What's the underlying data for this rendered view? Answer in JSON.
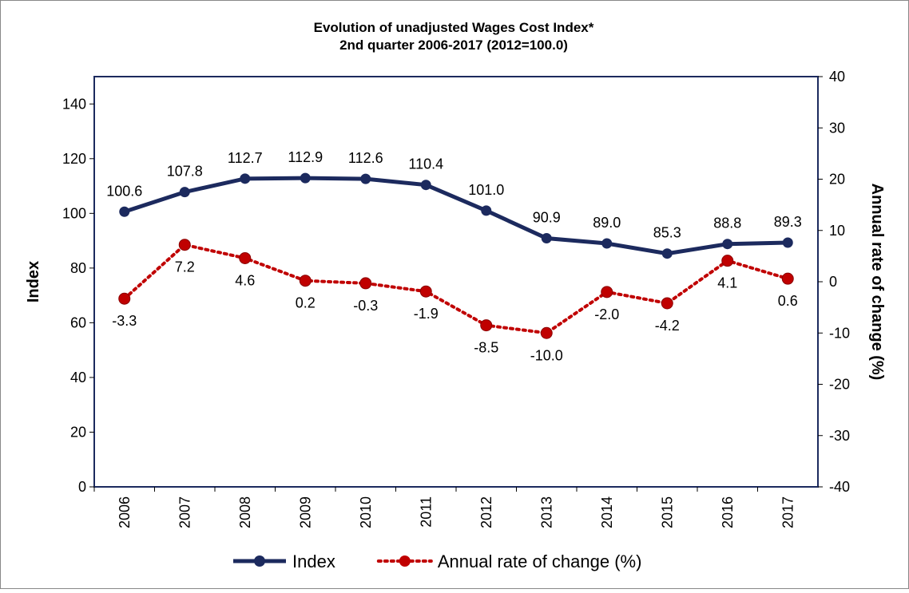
{
  "chart_data": {
    "type": "line",
    "title": "Evolution of unadjusted Wages Cost Index*",
    "subtitle": "2nd quarter 2006-2017 (2012=100.0)",
    "y_label": "Index",
    "y2_label": "Annual rate of change (%)",
    "categories": [
      "2006",
      "2007",
      "2008",
      "2009",
      "2010",
      "2011",
      "2012",
      "2013",
      "2014",
      "2015",
      "2016",
      "2017"
    ],
    "series": [
      {
        "name": "Index",
        "color": "#1c2a5e",
        "axis": "y",
        "values": [
          100.6,
          107.8,
          112.7,
          112.9,
          112.6,
          110.4,
          101.0,
          90.9,
          89.0,
          85.3,
          88.8,
          89.3
        ],
        "value_labels": [
          "100.6",
          "107.8",
          "112.7",
          "112.9",
          "112.6",
          "110.4",
          "101.0",
          "90.9",
          "89.0",
          "85.3",
          "88.8",
          "89.3"
        ]
      },
      {
        "name": "Annual rate of change (%)",
        "color": "#c00000",
        "axis": "y2",
        "values": [
          -3.3,
          7.2,
          4.6,
          0.2,
          -0.3,
          -1.9,
          -8.5,
          -10.0,
          -2.0,
          -4.2,
          4.1,
          0.6
        ],
        "value_labels": [
          "-3.3",
          "7.2",
          "4.6",
          "0.2",
          "-0.3",
          "-1.9",
          "-8.5",
          "-10.0",
          "-2.0",
          "-4.2",
          "4.1",
          "0.6"
        ]
      }
    ],
    "ylim": [
      0,
      150
    ],
    "yticks": [
      0,
      20,
      40,
      60,
      80,
      100,
      120,
      140
    ],
    "y2lim": [
      -40,
      40
    ],
    "y2ticks": [
      -40,
      -30,
      -20,
      -10,
      0,
      10,
      20,
      30,
      40
    ],
    "legend": "bottom"
  }
}
